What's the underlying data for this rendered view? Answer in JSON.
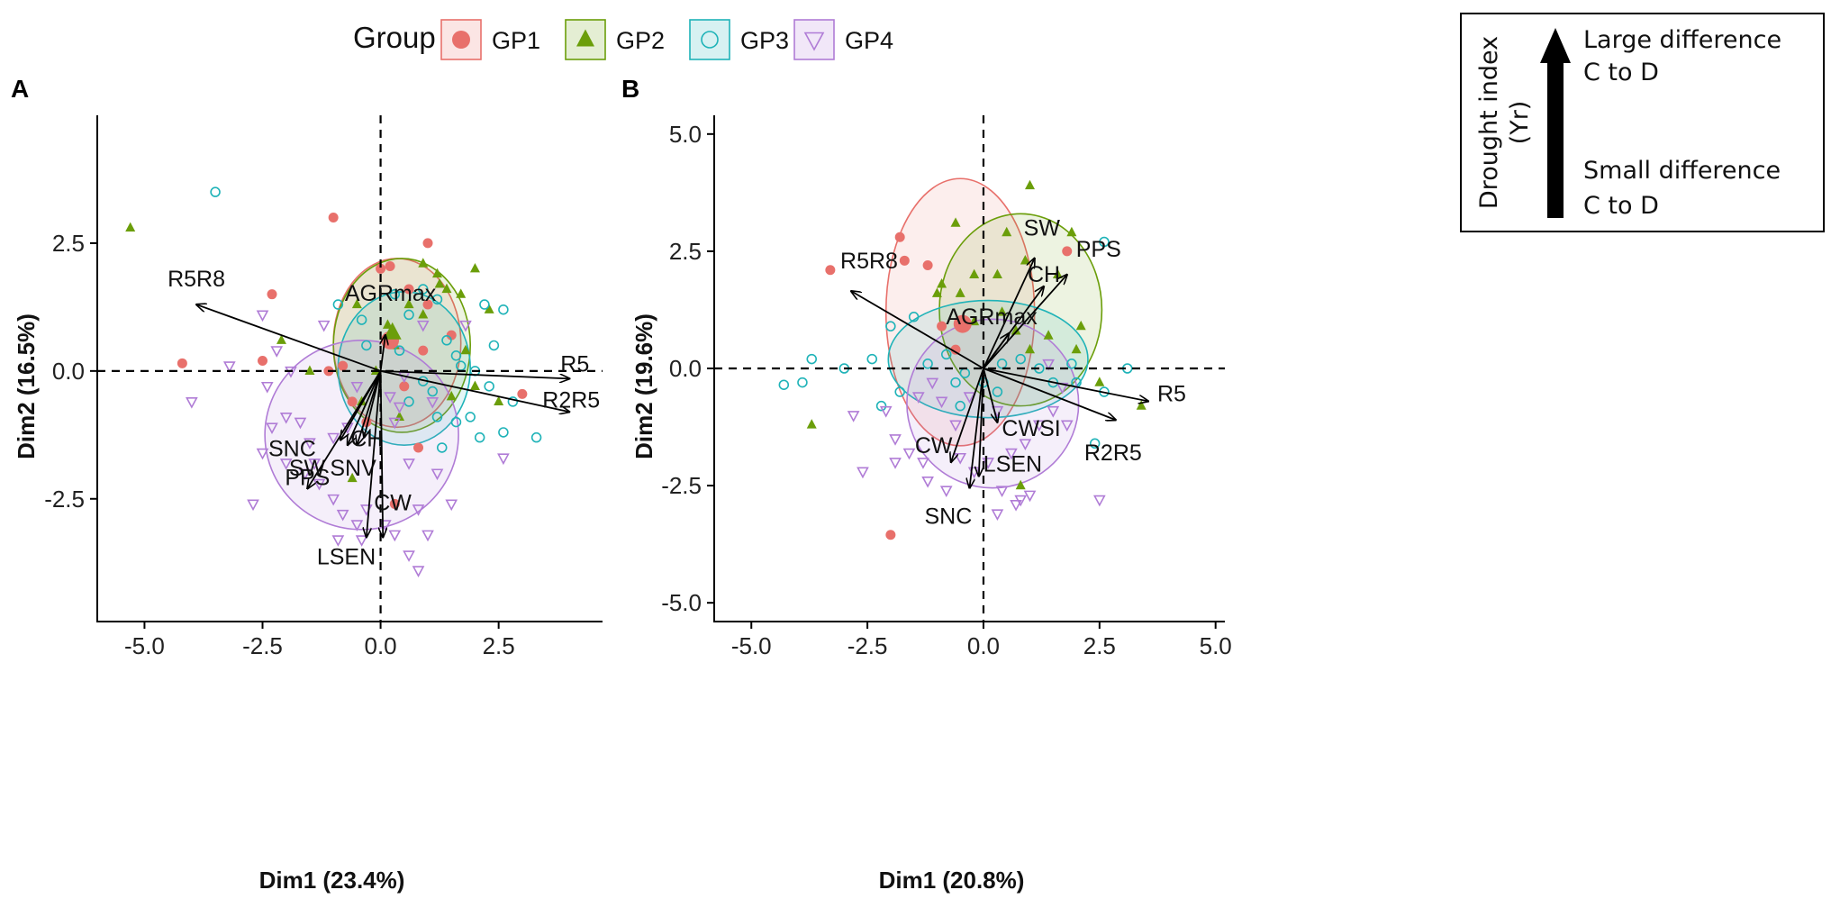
{
  "legend": {
    "title": "Group",
    "items": [
      {
        "label": "GP1",
        "color": "#E8706B",
        "shape": "circle"
      },
      {
        "label": "GP2",
        "color": "#6B9E0A",
        "shape": "triangle"
      },
      {
        "label": "GP3",
        "color": "#1FB3B8",
        "shape": "open-circle"
      },
      {
        "label": "GP4",
        "color": "#B07CD6",
        "shape": "open-triangle-down"
      }
    ]
  },
  "drought_index_box": {
    "axis_title": "Drought index",
    "axis_subtitle": "(Yr)",
    "top_line1": "Large difference",
    "top_line2": "C to D",
    "bottom_line1": "Small difference",
    "bottom_line2": "C to D"
  },
  "chart_data": [
    {
      "type": "scatter",
      "panel_label": "A",
      "xlabel": "Dim1 (23.4%)",
      "ylabel": "Dim2 (16.5%)",
      "xlim": [
        -6.0,
        4.7
      ],
      "ylim": [
        -4.9,
        5.0
      ],
      "xticks": [
        -5.0,
        -2.5,
        0.0,
        2.5
      ],
      "xtick_labels": [
        "-5.0",
        "-2.5",
        "0.0",
        "2.5"
      ],
      "yticks": [
        -2.5,
        0.0,
        2.5
      ],
      "ytick_labels": [
        "-2.5",
        "0.0",
        "2.5"
      ],
      "variables": [
        {
          "name": "R5R8",
          "x": -3.9,
          "y": 1.3
        },
        {
          "name": "AGRmax",
          "x": 0.1,
          "y": 0.7
        },
        {
          "name": "R5",
          "x": 4.0,
          "y": -0.15
        },
        {
          "name": "R2R5",
          "x": 4.0,
          "y": -0.8
        },
        {
          "name": "SNC",
          "x": -0.85,
          "y": -1.35
        },
        {
          "name": "SW",
          "x": -0.7,
          "y": -1.45
        },
        {
          "name": "SNV",
          "x": -0.5,
          "y": -1.45
        },
        {
          "name": "CH",
          "x": -0.35,
          "y": -1.3
        },
        {
          "name": "PPS",
          "x": -1.55,
          "y": -2.3
        },
        {
          "name": "LSEN",
          "x": -0.3,
          "y": -3.25
        },
        {
          "name": "CW",
          "x": 0.05,
          "y": -3.25
        }
      ],
      "ellipses": [
        {
          "group": "GP1",
          "cx": 0.35,
          "cy": 0.55,
          "rx": 1.35,
          "ry": 1.65
        },
        {
          "group": "GP2",
          "cx": 0.45,
          "cy": 0.5,
          "rx": 1.45,
          "ry": 1.7
        },
        {
          "group": "GP3",
          "cx": 0.5,
          "cy": 0.05,
          "rx": 1.4,
          "ry": 1.5
        },
        {
          "group": "GP4",
          "cx": -0.4,
          "cy": -1.25,
          "rx": 2.05,
          "ry": 1.85
        }
      ],
      "centroids": [
        {
          "group": "GP1",
          "x": 0.2,
          "y": 0.6
        },
        {
          "group": "GP2",
          "x": 0.25,
          "y": 0.75
        }
      ],
      "points": {
        "GP1": [
          [
            -4.2,
            0.15
          ],
          [
            -2.3,
            1.5
          ],
          [
            -2.5,
            0.2
          ],
          [
            -1.1,
            0.0
          ],
          [
            -0.8,
            0.1
          ],
          [
            0.0,
            2.0
          ],
          [
            0.2,
            2.05
          ],
          [
            0.6,
            1.6
          ],
          [
            1.0,
            1.3
          ],
          [
            1.0,
            2.5
          ],
          [
            0.9,
            0.4
          ],
          [
            0.5,
            -0.3
          ],
          [
            -0.6,
            -0.6
          ],
          [
            -0.3,
            -1.0
          ],
          [
            0.8,
            -1.5
          ],
          [
            1.5,
            0.7
          ],
          [
            3.0,
            -0.45
          ],
          [
            0.3,
            -2.6
          ],
          [
            -1.0,
            3.0
          ]
        ],
        "GP2": [
          [
            -5.3,
            2.8
          ],
          [
            -2.1,
            0.6
          ],
          [
            -1.5,
            0.0
          ],
          [
            -0.5,
            1.3
          ],
          [
            0.15,
            0.9
          ],
          [
            0.3,
            0.5
          ],
          [
            0.6,
            1.3
          ],
          [
            0.9,
            1.1
          ],
          [
            1.2,
            1.9
          ],
          [
            1.25,
            1.7
          ],
          [
            1.4,
            1.6
          ],
          [
            2.0,
            2.0
          ],
          [
            2.3,
            1.2
          ],
          [
            1.8,
            0.4
          ],
          [
            2.0,
            -0.3
          ],
          [
            2.5,
            -0.6
          ],
          [
            -0.4,
            -0.6
          ],
          [
            -0.1,
            0.0
          ],
          [
            0.9,
            2.1
          ],
          [
            1.7,
            1.5
          ],
          [
            -0.6,
            -2.1
          ],
          [
            0.4,
            -0.9
          ],
          [
            1.5,
            -0.5
          ]
        ],
        "GP3": [
          [
            -3.5,
            3.5
          ],
          [
            -0.9,
            1.3
          ],
          [
            -0.4,
            1.0
          ],
          [
            0.3,
            1.5
          ],
          [
            0.6,
            1.1
          ],
          [
            0.9,
            1.6
          ],
          [
            1.2,
            1.4
          ],
          [
            1.4,
            0.6
          ],
          [
            1.6,
            0.3
          ],
          [
            1.7,
            0.1
          ],
          [
            2.0,
            0.0
          ],
          [
            2.3,
            -0.3
          ],
          [
            2.6,
            1.2
          ],
          [
            2.4,
            0.5
          ],
          [
            2.8,
            -0.6
          ],
          [
            3.3,
            -1.3
          ],
          [
            2.6,
            -1.2
          ],
          [
            1.9,
            -0.9
          ],
          [
            1.3,
            -1.5
          ],
          [
            1.2,
            -0.9
          ],
          [
            0.6,
            -0.6
          ],
          [
            0.9,
            -0.2
          ],
          [
            0.4,
            0.4
          ],
          [
            1.1,
            -0.4
          ],
          [
            2.2,
            1.3
          ],
          [
            -0.3,
            0.5
          ],
          [
            1.6,
            -1.0
          ],
          [
            2.1,
            -1.3
          ]
        ],
        "GP4": [
          [
            -4.0,
            -0.6
          ],
          [
            -3.2,
            0.1
          ],
          [
            -2.5,
            1.1
          ],
          [
            -2.2,
            0.4
          ],
          [
            -1.9,
            0.0
          ],
          [
            -1.2,
            0.9
          ],
          [
            -2.4,
            -0.3
          ],
          [
            -1.7,
            -1.0
          ],
          [
            -1.5,
            -1.4
          ],
          [
            -2.5,
            -1.6
          ],
          [
            -2.3,
            -1.1
          ],
          [
            -2.0,
            -1.8
          ],
          [
            -1.4,
            -1.8
          ],
          [
            -1.0,
            -1.3
          ],
          [
            -0.7,
            -1.1
          ],
          [
            -1.3,
            -2.2
          ],
          [
            -1.0,
            -2.5
          ],
          [
            -0.8,
            -2.8
          ],
          [
            -0.5,
            -3.0
          ],
          [
            -0.3,
            -2.7
          ],
          [
            -0.9,
            -3.3
          ],
          [
            -0.4,
            -3.3
          ],
          [
            0.1,
            -3.0
          ],
          [
            0.3,
            -3.2
          ],
          [
            0.6,
            -3.6
          ],
          [
            0.8,
            -3.9
          ],
          [
            1.0,
            -3.2
          ],
          [
            0.8,
            -2.7
          ],
          [
            0.6,
            -1.8
          ],
          [
            0.3,
            -1.0
          ],
          [
            0.2,
            -0.5
          ],
          [
            0.5,
            -0.1
          ],
          [
            1.1,
            -0.6
          ],
          [
            1.5,
            -2.6
          ],
          [
            1.2,
            -2.0
          ],
          [
            2.6,
            -1.7
          ],
          [
            -2.7,
            -2.6
          ],
          [
            -1.6,
            -2.0
          ],
          [
            -0.5,
            -0.3
          ],
          [
            -2.0,
            -0.9
          ],
          [
            0.4,
            -0.7
          ],
          [
            0.9,
            0.9
          ],
          [
            1.8,
            0.9
          ]
        ]
      }
    },
    {
      "type": "scatter",
      "panel_label": "B",
      "xlabel": "Dim1 (20.8%)",
      "ylabel": "Dim2 (19.6%)",
      "xlim": [
        -5.8,
        5.2
      ],
      "ylim": [
        -5.4,
        5.4
      ],
      "xticks": [
        -5.0,
        -2.5,
        0.0,
        2.5,
        5.0
      ],
      "xtick_labels": [
        "-5.0",
        "-2.5",
        "0.0",
        "2.5",
        "5.0"
      ],
      "yticks": [
        -5.0,
        -2.5,
        0.0,
        2.5,
        5.0
      ],
      "ytick_labels": [
        "-5.0",
        "-2.5",
        "0.0",
        "2.5",
        "5.0"
      ],
      "variables": [
        {
          "name": "SW",
          "x": 1.1,
          "y": 2.35
        },
        {
          "name": "PPS",
          "x": 1.8,
          "y": 2.0
        },
        {
          "name": "R5R8",
          "x": -2.85,
          "y": 1.65
        },
        {
          "name": "CH",
          "x": 1.3,
          "y": 1.75
        },
        {
          "name": "AGRmax",
          "x": 0.55,
          "y": 0.75
        },
        {
          "name": "R5",
          "x": 3.55,
          "y": -0.7
        },
        {
          "name": "R2R5",
          "x": 2.85,
          "y": -1.1
        },
        {
          "name": "CWSI",
          "x": 0.3,
          "y": -1.15
        },
        {
          "name": "CW",
          "x": -0.7,
          "y": -2.0
        },
        {
          "name": "LSEN",
          "x": -0.1,
          "y": -2.3
        },
        {
          "name": "SNC",
          "x": -0.3,
          "y": -2.55
        }
      ],
      "ellipses": [
        {
          "group": "GP1",
          "cx": -0.5,
          "cy": 1.2,
          "rx": 1.6,
          "ry": 2.85
        },
        {
          "group": "GP2",
          "cx": 0.8,
          "cy": 1.25,
          "rx": 1.75,
          "ry": 2.05
        },
        {
          "group": "GP3",
          "cx": 0.1,
          "cy": 0.2,
          "rx": 2.15,
          "ry": 1.25
        },
        {
          "group": "GP4",
          "cx": 0.2,
          "cy": -0.75,
          "rx": 1.85,
          "ry": 1.8
        }
      ],
      "centroids": [
        {
          "group": "GP1",
          "x": -0.45,
          "y": 0.95
        }
      ],
      "points": {
        "GP1": [
          [
            -3.3,
            2.1
          ],
          [
            -1.8,
            2.8
          ],
          [
            -1.7,
            2.3
          ],
          [
            -1.2,
            2.2
          ],
          [
            1.8,
            2.5
          ],
          [
            -2.0,
            -3.55
          ],
          [
            -0.9,
            0.9
          ],
          [
            -0.6,
            0.4
          ]
        ],
        "GP2": [
          [
            -3.7,
            -1.2
          ],
          [
            -0.6,
            3.1
          ],
          [
            0.5,
            2.9
          ],
          [
            1.0,
            3.9
          ],
          [
            1.9,
            2.9
          ],
          [
            1.6,
            2.0
          ],
          [
            2.1,
            0.9
          ],
          [
            1.4,
            0.7
          ],
          [
            1.0,
            0.4
          ],
          [
            0.7,
            0.8
          ],
          [
            0.4,
            1.2
          ],
          [
            0.3,
            2.0
          ],
          [
            -0.2,
            2.0
          ],
          [
            -0.5,
            1.6
          ],
          [
            -0.9,
            1.8
          ],
          [
            -1.0,
            1.6
          ],
          [
            0.9,
            2.3
          ],
          [
            2.0,
            0.4
          ],
          [
            2.5,
            -0.3
          ],
          [
            3.4,
            -0.8
          ],
          [
            0.8,
            -2.5
          ],
          [
            -0.2,
            1.0
          ]
        ],
        "GP3": [
          [
            -4.3,
            -0.35
          ],
          [
            -3.9,
            -0.3
          ],
          [
            -3.0,
            0.0
          ],
          [
            -3.7,
            0.2
          ],
          [
            -2.4,
            0.2
          ],
          [
            -2.0,
            0.9
          ],
          [
            -2.2,
            -0.8
          ],
          [
            -1.8,
            -0.5
          ],
          [
            -1.2,
            0.1
          ],
          [
            -0.8,
            0.3
          ],
          [
            -0.4,
            -0.1
          ],
          [
            0.0,
            -0.3
          ],
          [
            0.4,
            0.1
          ],
          [
            0.8,
            0.2
          ],
          [
            1.2,
            0.0
          ],
          [
            1.5,
            -0.3
          ],
          [
            1.9,
            0.1
          ],
          [
            2.0,
            -0.3
          ],
          [
            2.6,
            2.7
          ],
          [
            2.6,
            -0.5
          ],
          [
            3.1,
            0.0
          ],
          [
            2.4,
            -1.6
          ],
          [
            -0.5,
            -0.8
          ],
          [
            0.3,
            -0.5
          ],
          [
            -1.5,
            1.1
          ],
          [
            -0.6,
            -0.3
          ]
        ],
        "GP4": [
          [
            -2.6,
            -2.2
          ],
          [
            -2.1,
            -0.9
          ],
          [
            -1.9,
            -1.5
          ],
          [
            -1.6,
            -1.8
          ],
          [
            -1.3,
            -2.0
          ],
          [
            -1.4,
            -0.6
          ],
          [
            -1.1,
            -0.3
          ],
          [
            -0.9,
            -0.7
          ],
          [
            -0.6,
            -1.2
          ],
          [
            -0.5,
            -1.9
          ],
          [
            -0.2,
            -2.2
          ],
          [
            0.1,
            -2.0
          ],
          [
            0.6,
            -1.8
          ],
          [
            0.9,
            -1.6
          ],
          [
            1.2,
            -1.2
          ],
          [
            1.5,
            -0.9
          ],
          [
            1.4,
            0.1
          ],
          [
            1.7,
            -0.4
          ],
          [
            0.3,
            -0.9
          ],
          [
            -0.3,
            -0.6
          ],
          [
            0.4,
            -2.6
          ],
          [
            0.8,
            -2.8
          ],
          [
            1.0,
            -2.7
          ],
          [
            0.7,
            -2.9
          ],
          [
            -1.9,
            -2.0
          ],
          [
            -2.8,
            -1.0
          ],
          [
            -1.2,
            -2.4
          ],
          [
            -0.8,
            -2.6
          ],
          [
            0.3,
            -3.1
          ],
          [
            2.5,
            -2.8
          ],
          [
            1.8,
            -1.2
          ]
        ]
      }
    }
  ]
}
